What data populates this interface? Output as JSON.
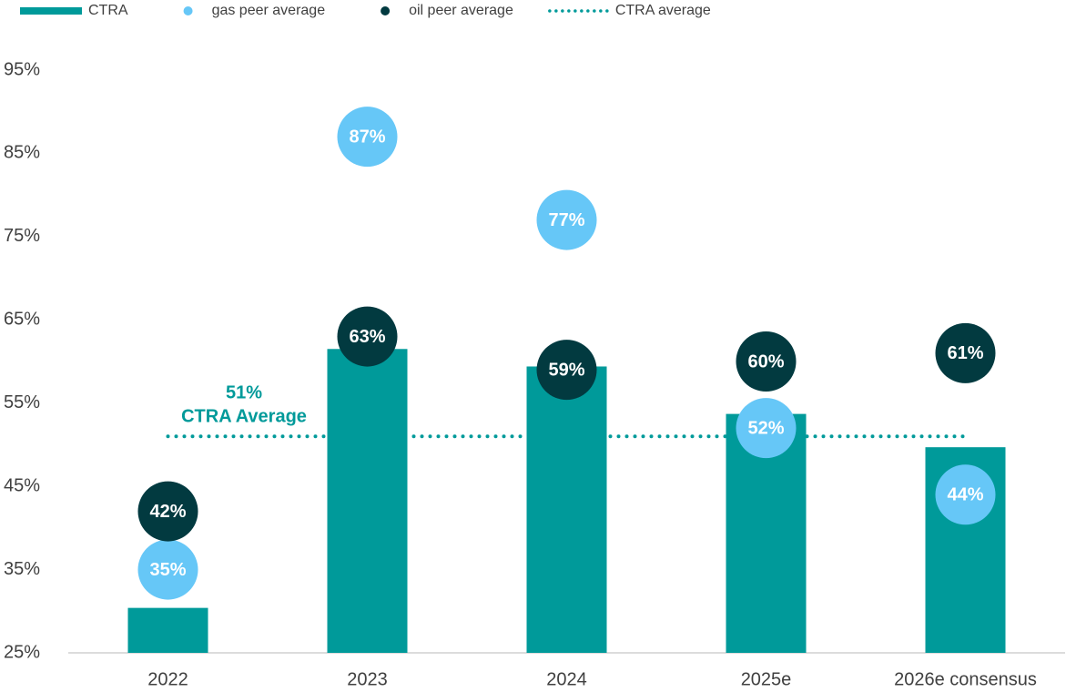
{
  "chart_data": {
    "type": "bar",
    "categories": [
      "2022",
      "2023",
      "2024",
      "2025e",
      "2026e consensus"
    ],
    "ylim": [
      25,
      95
    ],
    "yticks": [
      {
        "value": 25,
        "label": "25%"
      },
      {
        "value": 35,
        "label": "35%"
      },
      {
        "value": 45,
        "label": "45%"
      },
      {
        "value": 55,
        "label": "55%"
      },
      {
        "value": 65,
        "label": "65%"
      },
      {
        "value": 75,
        "label": "75%"
      },
      {
        "value": 85,
        "label": "85%"
      },
      {
        "value": 95,
        "label": "95%"
      }
    ],
    "grid": false,
    "series": [
      {
        "name": "CTRA",
        "type": "bar",
        "color": "#009a9a",
        "values": [
          30.4,
          61.5,
          59.4,
          53.7,
          49.7
        ]
      },
      {
        "name": "gas peer average",
        "type": "dot",
        "color": "#66c7f7",
        "values": [
          35,
          87,
          77,
          52,
          44
        ],
        "value_labels": [
          "35%",
          "87%",
          "77%",
          "52%",
          "44%"
        ]
      },
      {
        "name": "oil peer average",
        "type": "dot",
        "color": "#023a40",
        "values": [
          42,
          63,
          59,
          60,
          61
        ],
        "value_labels": [
          "42%",
          "63%",
          "59%",
          "60%",
          "61%"
        ]
      }
    ],
    "average": {
      "name": "CTRA average",
      "color": "#009a9a",
      "value": 51,
      "value_label": "51%",
      "annotation": "CTRA Average"
    }
  }
}
